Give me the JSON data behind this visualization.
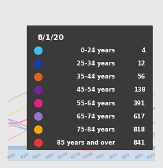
{
  "title": "8/1/20",
  "background_color": "#3a3a3a",
  "text_color": "#ffffff",
  "categories": [
    "0-24 years",
    "25-34 years",
    "35-44 years",
    "45-54 years",
    "55-64 years",
    "65-74 years",
    "75-84 years",
    "85 years and over"
  ],
  "values": [
    "4",
    "12",
    "56",
    "138",
    "391",
    "617",
    "818",
    "841"
  ],
  "colors": [
    "#3fc0f0",
    "#1a3baa",
    "#e06020",
    "#7b1fa2",
    "#e91e8c",
    "#9575cd",
    "#f9a800",
    "#e53935"
  ],
  "outer_bg": "#e8e8e8",
  "line_colors": [
    "#ffb6b6",
    "#f5c97a",
    "#d4b0d4",
    "#b0b0ff",
    "#8ec8f0",
    "#f080b0",
    "#e8e870",
    "#b0e0b0"
  ],
  "date_labels": [
    "6/20",
    "7/20",
    "8/20",
    "9/20",
    "10/20",
    "11/20",
    "12/20",
    "1/21",
    "2/21",
    "3/21",
    "4/21",
    "5/21"
  ],
  "date_color": "#888888"
}
